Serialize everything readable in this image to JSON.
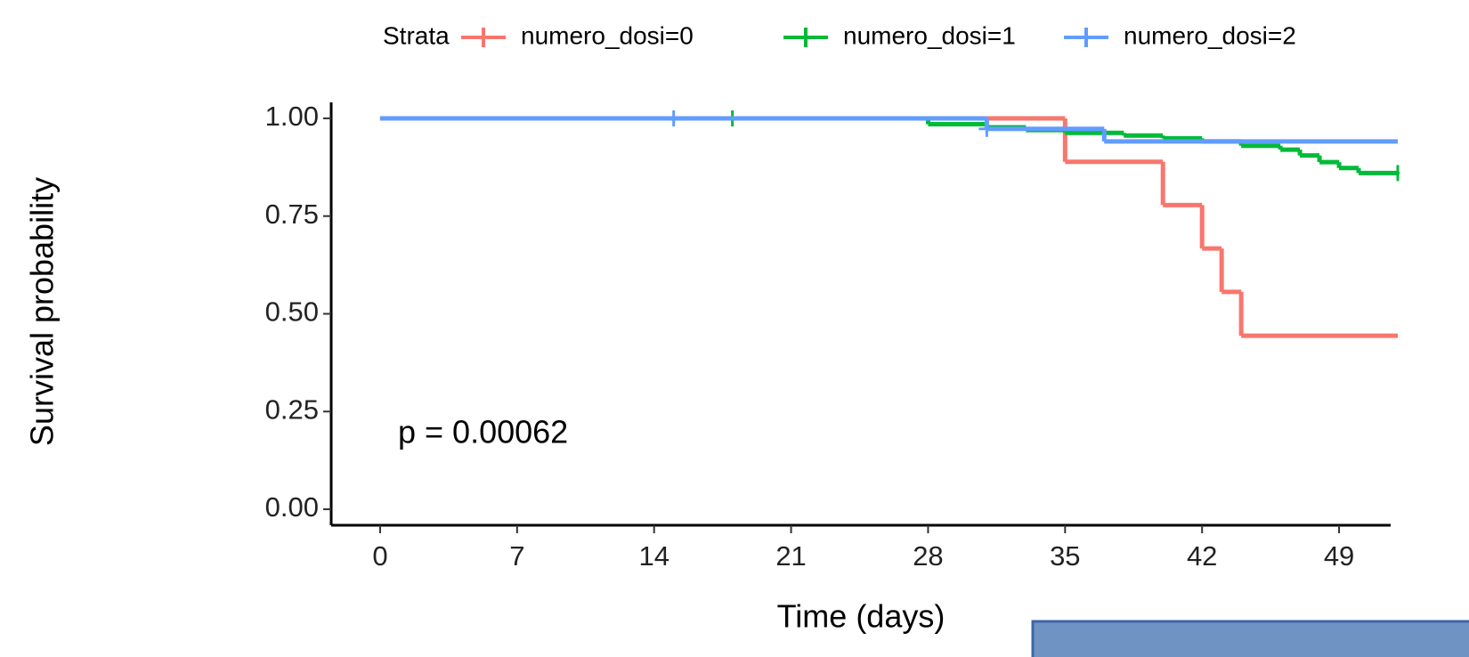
{
  "chart_data": {
    "type": "step",
    "legend_title": "Strata",
    "x_label": "Time (days)",
    "y_label": "Survival probability",
    "annotation": "p = 0.00062",
    "xlim": [
      -2.5,
      52
    ],
    "ylim": [
      -0.05,
      1.05
    ],
    "xticks": [
      0,
      7,
      14,
      21,
      28,
      35,
      42,
      49
    ],
    "yticks": [
      {
        "value": 0,
        "label": "0.00"
      },
      {
        "value": 0.25,
        "label": "0.25"
      },
      {
        "value": 0.5,
        "label": "0.50"
      },
      {
        "value": 0.75,
        "label": "0.75"
      },
      {
        "value": 1,
        "label": "1.00"
      }
    ],
    "legend": "top",
    "series": [
      {
        "name": "numero_dosi=0",
        "color": "#F8766D",
        "x": [
          0,
          35,
          40,
          42,
          43,
          44,
          52
        ],
        "values": [
          1,
          0.889,
          0.778,
          0.667,
          0.556,
          0.444,
          0.444
        ],
        "censor_x": [],
        "censor_values": []
      },
      {
        "name": "numero_dosi=1",
        "color": "#00BA38",
        "x": [
          0,
          28,
          31,
          33,
          35,
          38,
          40,
          42,
          44,
          46,
          47,
          48,
          49,
          50,
          52
        ],
        "values": [
          1,
          0.985,
          0.977,
          0.97,
          0.963,
          0.956,
          0.949,
          0.941,
          0.93,
          0.92,
          0.905,
          0.888,
          0.873,
          0.86,
          0.86
        ],
        "censor_x": [
          18,
          52
        ],
        "censor_values": [
          1,
          0.86
        ]
      },
      {
        "name": "numero_dosi=2",
        "color": "#619CFF",
        "x": [
          0,
          31,
          37,
          52
        ],
        "values": [
          1,
          0.973,
          0.941,
          0.941
        ],
        "censor_x": [
          15,
          31
        ],
        "censor_values": [
          1,
          0.973
        ]
      }
    ]
  }
}
